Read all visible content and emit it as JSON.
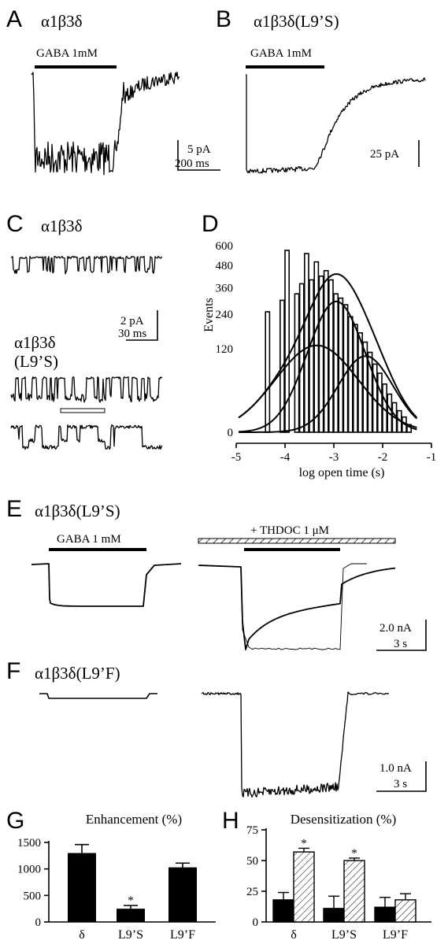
{
  "panels": {
    "A": {
      "letter": "A",
      "title": "α1β3δ",
      "drug": "GABA 1mM",
      "scale_y": "5 pA",
      "scale_x": "200 ms"
    },
    "B": {
      "letter": "B",
      "title": "α1β3δ(L9’S)",
      "drug": "GABA 1mM",
      "scale_y": "25 pA"
    },
    "C": {
      "letter": "C",
      "title1": "α1β3δ",
      "title2a": "α1β3δ",
      "title2b": "(L9’S)",
      "scale_y": "2 pA",
      "scale_x": "30 ms"
    },
    "D": {
      "letter": "D"
    },
    "E": {
      "letter": "E",
      "title": "α1β3δ(L9’S)",
      "drug1": "GABA 1 mM",
      "drug2": "+ THDOC 1 μM",
      "scale_y": "2.0 nA",
      "scale_x": "3 s"
    },
    "F": {
      "letter": "F",
      "title": "α1β3δ(L9’F)",
      "scale_y": "1.0 nA",
      "scale_x": "3 s"
    },
    "G": {
      "letter": "G"
    },
    "H": {
      "letter": "H"
    }
  },
  "chart_data": [
    {
      "panel": "D",
      "type": "bar",
      "ylabel": "Events",
      "xlabel": "log open time (s)",
      "xlim": [
        -5,
        -1
      ],
      "ylim": [
        0,
        600
      ],
      "yscale": "sqrt",
      "xticks": [
        -5,
        -4,
        -3,
        -2,
        -1
      ],
      "yticks": [
        0,
        120,
        240,
        360,
        480,
        600
      ],
      "histogram": {
        "bin_edges": [
          -4.4,
          -4.3,
          -4.2,
          -4.1,
          -4.0,
          -3.9,
          -3.8,
          -3.7,
          -3.6,
          -3.5,
          -3.4,
          -3.3,
          -3.2,
          -3.1,
          -3.0,
          -2.9,
          -2.8,
          -2.7,
          -2.6,
          -2.5,
          -2.4,
          -2.3,
          -2.2,
          -2.1,
          -2.0,
          -1.9,
          -1.8,
          -1.7,
          -1.6,
          -1.5,
          -1.4
        ],
        "counts": [
          250,
          0,
          0,
          300,
          570,
          0,
          330,
          380,
          550,
          400,
          500,
          420,
          450,
          400,
          330,
          310,
          280,
          230,
          200,
          170,
          140,
          110,
          80,
          60,
          40,
          25,
          15,
          8,
          4,
          1
        ]
      },
      "fits": [
        {
          "components": [
            {
              "amp": 130,
              "mean": -3.35,
              "sd": 0.6
            },
            {
              "amp": 295,
              "mean": -2.95,
              "sd": 0.42
            },
            {
              "amp": 100,
              "mean": -2.35,
              "sd": 0.4
            }
          ],
          "sum": true
        },
        {
          "components": [
            {
              "amp": 130,
              "mean": -3.35,
              "sd": 0.6
            }
          ]
        },
        {
          "components": [
            {
              "amp": 295,
              "mean": -2.95,
              "sd": 0.42
            }
          ]
        },
        {
          "components": [
            {
              "amp": 100,
              "mean": -2.35,
              "sd": 0.4
            }
          ]
        }
      ]
    },
    {
      "panel": "G",
      "type": "bar",
      "title": "Enhancement (%)",
      "categories": [
        "δ",
        "L9’S",
        "L9’F"
      ],
      "values": [
        1300,
        250,
        1030
      ],
      "errors": [
        160,
        60,
        80
      ],
      "significant": [
        false,
        true,
        false
      ],
      "ylim": [
        0,
        1500
      ],
      "yticks": [
        0,
        500,
        1000,
        1500
      ]
    },
    {
      "panel": "H",
      "type": "bar",
      "title": "Desensitization (%)",
      "categories": [
        "δ",
        "L9’S",
        "L9’F"
      ],
      "series": [
        {
          "values": [
            18,
            11,
            12
          ],
          "errors": [
            6,
            10,
            8
          ],
          "fill": "solid"
        },
        {
          "values": [
            57,
            50,
            18
          ],
          "errors": [
            3,
            2,
            5
          ],
          "fill": "hatched",
          "significant": [
            true,
            true,
            false
          ]
        }
      ],
      "ylim": [
        0,
        75
      ],
      "yticks": [
        0,
        25,
        50,
        75
      ]
    }
  ]
}
